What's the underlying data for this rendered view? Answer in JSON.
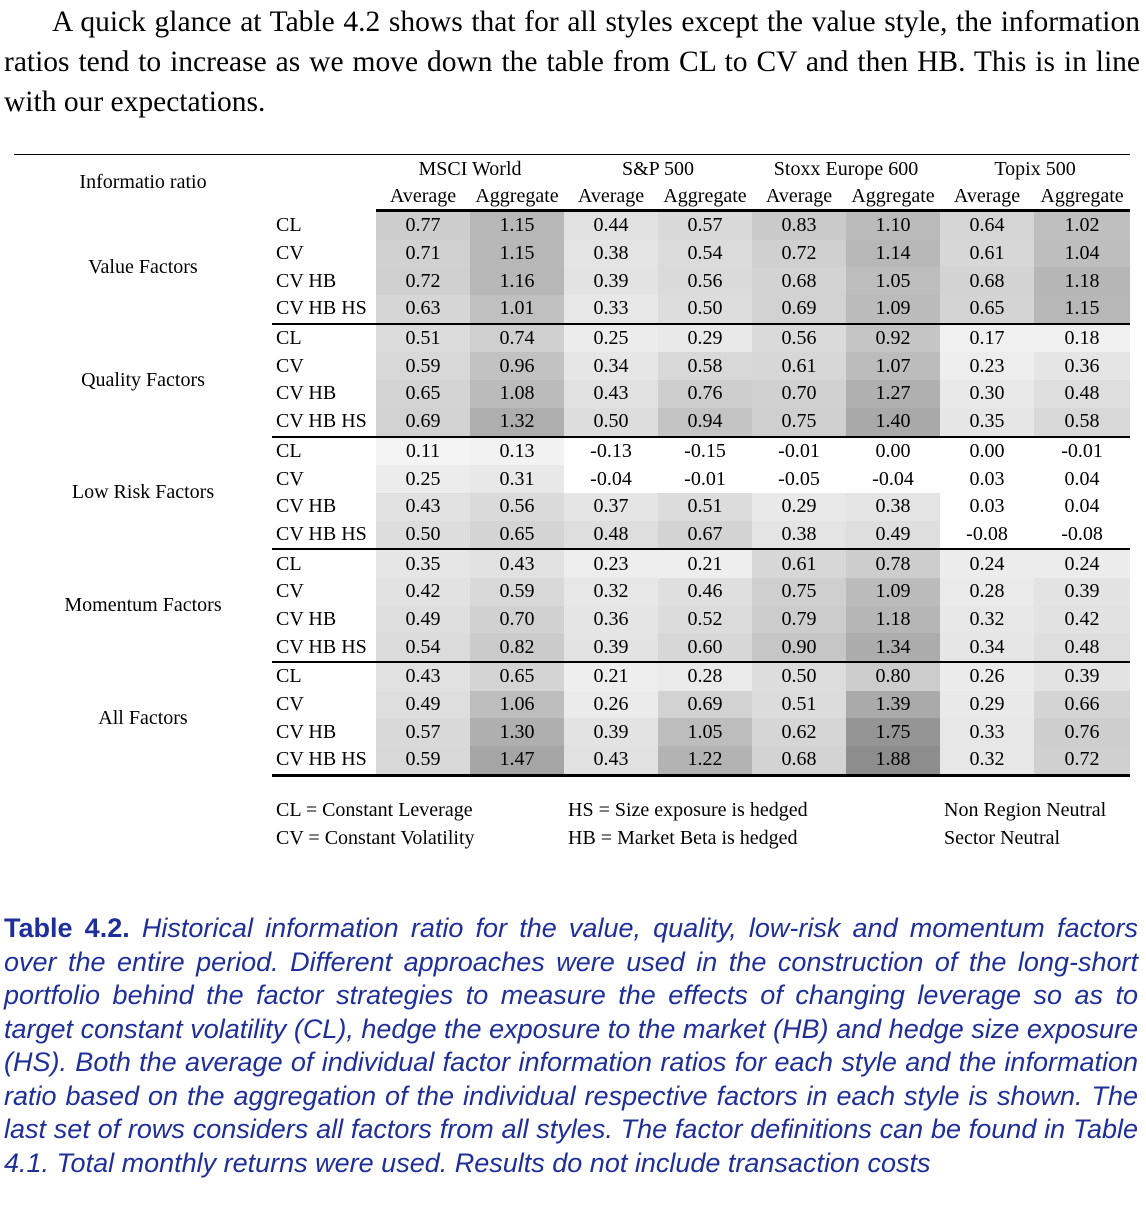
{
  "intro": "A quick glance at Table 4.2 shows that for all styles except the value style, the information ratios tend to increase as we move down the table from CL to CV and then HB. This is in line with our expectations.",
  "table": {
    "corner": "Informatio ratio",
    "regions": [
      "MSCI World",
      "S&P 500",
      "Stoxx Europe 600",
      "Topix 500"
    ],
    "subheaders": [
      "Average",
      "Aggregate",
      "Average",
      "Aggregate",
      "Average",
      "Aggregate",
      "Average",
      "Aggregate"
    ],
    "groups": [
      {
        "style": "Value Factors",
        "rows": [
          {
            "method": "CL",
            "values": [
              "0.77",
              "1.15",
              "0.44",
              "0.57",
              "0.83",
              "1.10",
              "0.64",
              "1.02"
            ]
          },
          {
            "method": "CV",
            "values": [
              "0.71",
              "1.15",
              "0.38",
              "0.54",
              "0.72",
              "1.14",
              "0.61",
              "1.04"
            ]
          },
          {
            "method": "CV HB",
            "values": [
              "0.72",
              "1.16",
              "0.39",
              "0.56",
              "0.68",
              "1.05",
              "0.68",
              "1.18"
            ]
          },
          {
            "method": "CV HB HS",
            "values": [
              "0.63",
              "1.01",
              "0.33",
              "0.50",
              "0.69",
              "1.09",
              "0.65",
              "1.15"
            ]
          }
        ]
      },
      {
        "style": "Quality Factors",
        "rows": [
          {
            "method": "CL",
            "values": [
              "0.51",
              "0.74",
              "0.25",
              "0.29",
              "0.56",
              "0.92",
              "0.17",
              "0.18"
            ]
          },
          {
            "method": "CV",
            "values": [
              "0.59",
              "0.96",
              "0.34",
              "0.58",
              "0.61",
              "1.07",
              "0.23",
              "0.36"
            ]
          },
          {
            "method": "CV HB",
            "values": [
              "0.65",
              "1.08",
              "0.43",
              "0.76",
              "0.70",
              "1.27",
              "0.30",
              "0.48"
            ]
          },
          {
            "method": "CV HB HS",
            "values": [
              "0.69",
              "1.32",
              "0.50",
              "0.94",
              "0.75",
              "1.40",
              "0.35",
              "0.58"
            ]
          }
        ]
      },
      {
        "style": "Low Risk Factors",
        "rows": [
          {
            "method": "CL",
            "values": [
              "0.11",
              "0.13",
              "-0.13",
              "-0.15",
              "-0.01",
              "0.00",
              "0.00",
              "-0.01"
            ]
          },
          {
            "method": "CV",
            "values": [
              "0.25",
              "0.31",
              "-0.04",
              "-0.01",
              "-0.05",
              "-0.04",
              "0.03",
              "0.04"
            ]
          },
          {
            "method": "CV HB",
            "values": [
              "0.43",
              "0.56",
              "0.37",
              "0.51",
              "0.29",
              "0.38",
              "0.03",
              "0.04"
            ]
          },
          {
            "method": "CV HB HS",
            "values": [
              "0.50",
              "0.65",
              "0.48",
              "0.67",
              "0.38",
              "0.49",
              "-0.08",
              "-0.08"
            ]
          }
        ]
      },
      {
        "style": "Momentum Factors",
        "rows": [
          {
            "method": "CL",
            "values": [
              "0.35",
              "0.43",
              "0.23",
              "0.21",
              "0.61",
              "0.78",
              "0.24",
              "0.24"
            ]
          },
          {
            "method": "CV",
            "values": [
              "0.42",
              "0.59",
              "0.32",
              "0.46",
              "0.75",
              "1.09",
              "0.28",
              "0.39"
            ]
          },
          {
            "method": "CV HB",
            "values": [
              "0.49",
              "0.70",
              "0.36",
              "0.52",
              "0.79",
              "1.18",
              "0.32",
              "0.42"
            ]
          },
          {
            "method": "CV HB HS",
            "values": [
              "0.54",
              "0.82",
              "0.39",
              "0.60",
              "0.90",
              "1.34",
              "0.34",
              "0.48"
            ]
          }
        ]
      },
      {
        "style": "All Factors",
        "rows": [
          {
            "method": "CL",
            "values": [
              "0.43",
              "0.65",
              "0.21",
              "0.28",
              "0.50",
              "0.80",
              "0.26",
              "0.39"
            ]
          },
          {
            "method": "CV",
            "values": [
              "0.49",
              "1.06",
              "0.26",
              "0.69",
              "0.51",
              "1.39",
              "0.29",
              "0.66"
            ]
          },
          {
            "method": "CV HB",
            "values": [
              "0.57",
              "1.30",
              "0.39",
              "1.05",
              "0.62",
              "1.75",
              "0.33",
              "0.76"
            ]
          },
          {
            "method": "CV HB HS",
            "values": [
              "0.59",
              "1.47",
              "0.43",
              "1.22",
              "0.68",
              "1.88",
              "0.32",
              "0.72"
            ]
          }
        ]
      }
    ]
  },
  "legend": {
    "col1": [
      "CL = Constant Leverage",
      "CV = Constant Volatility"
    ],
    "col2": [
      "HS = Size exposure is hedged",
      "HB = Market Beta is hedged"
    ],
    "col3": [
      "Non Region Neutral",
      "Sector Neutral"
    ]
  },
  "caption": {
    "label": "Table 4.2.",
    "text": "Historical information ratio for the value, quality, low-risk and momentum factors over the entire period. Different approaches were used in the construction of the long-short portfolio behind the factor strategies to measure the effects of changing leverage so as to target constant volatility (CL), hedge the exposure to the market (HB) and hedge size exposure (HS). Both the average of individual factor information ratios for each style and the information ratio based on the aggregation of the individual respective factors in each style is shown. The last set of rows considers all factors from all styles. The factor definitions can be found in Table 4.1. Total monthly returns were used. Results do not include transaction costs"
  }
}
